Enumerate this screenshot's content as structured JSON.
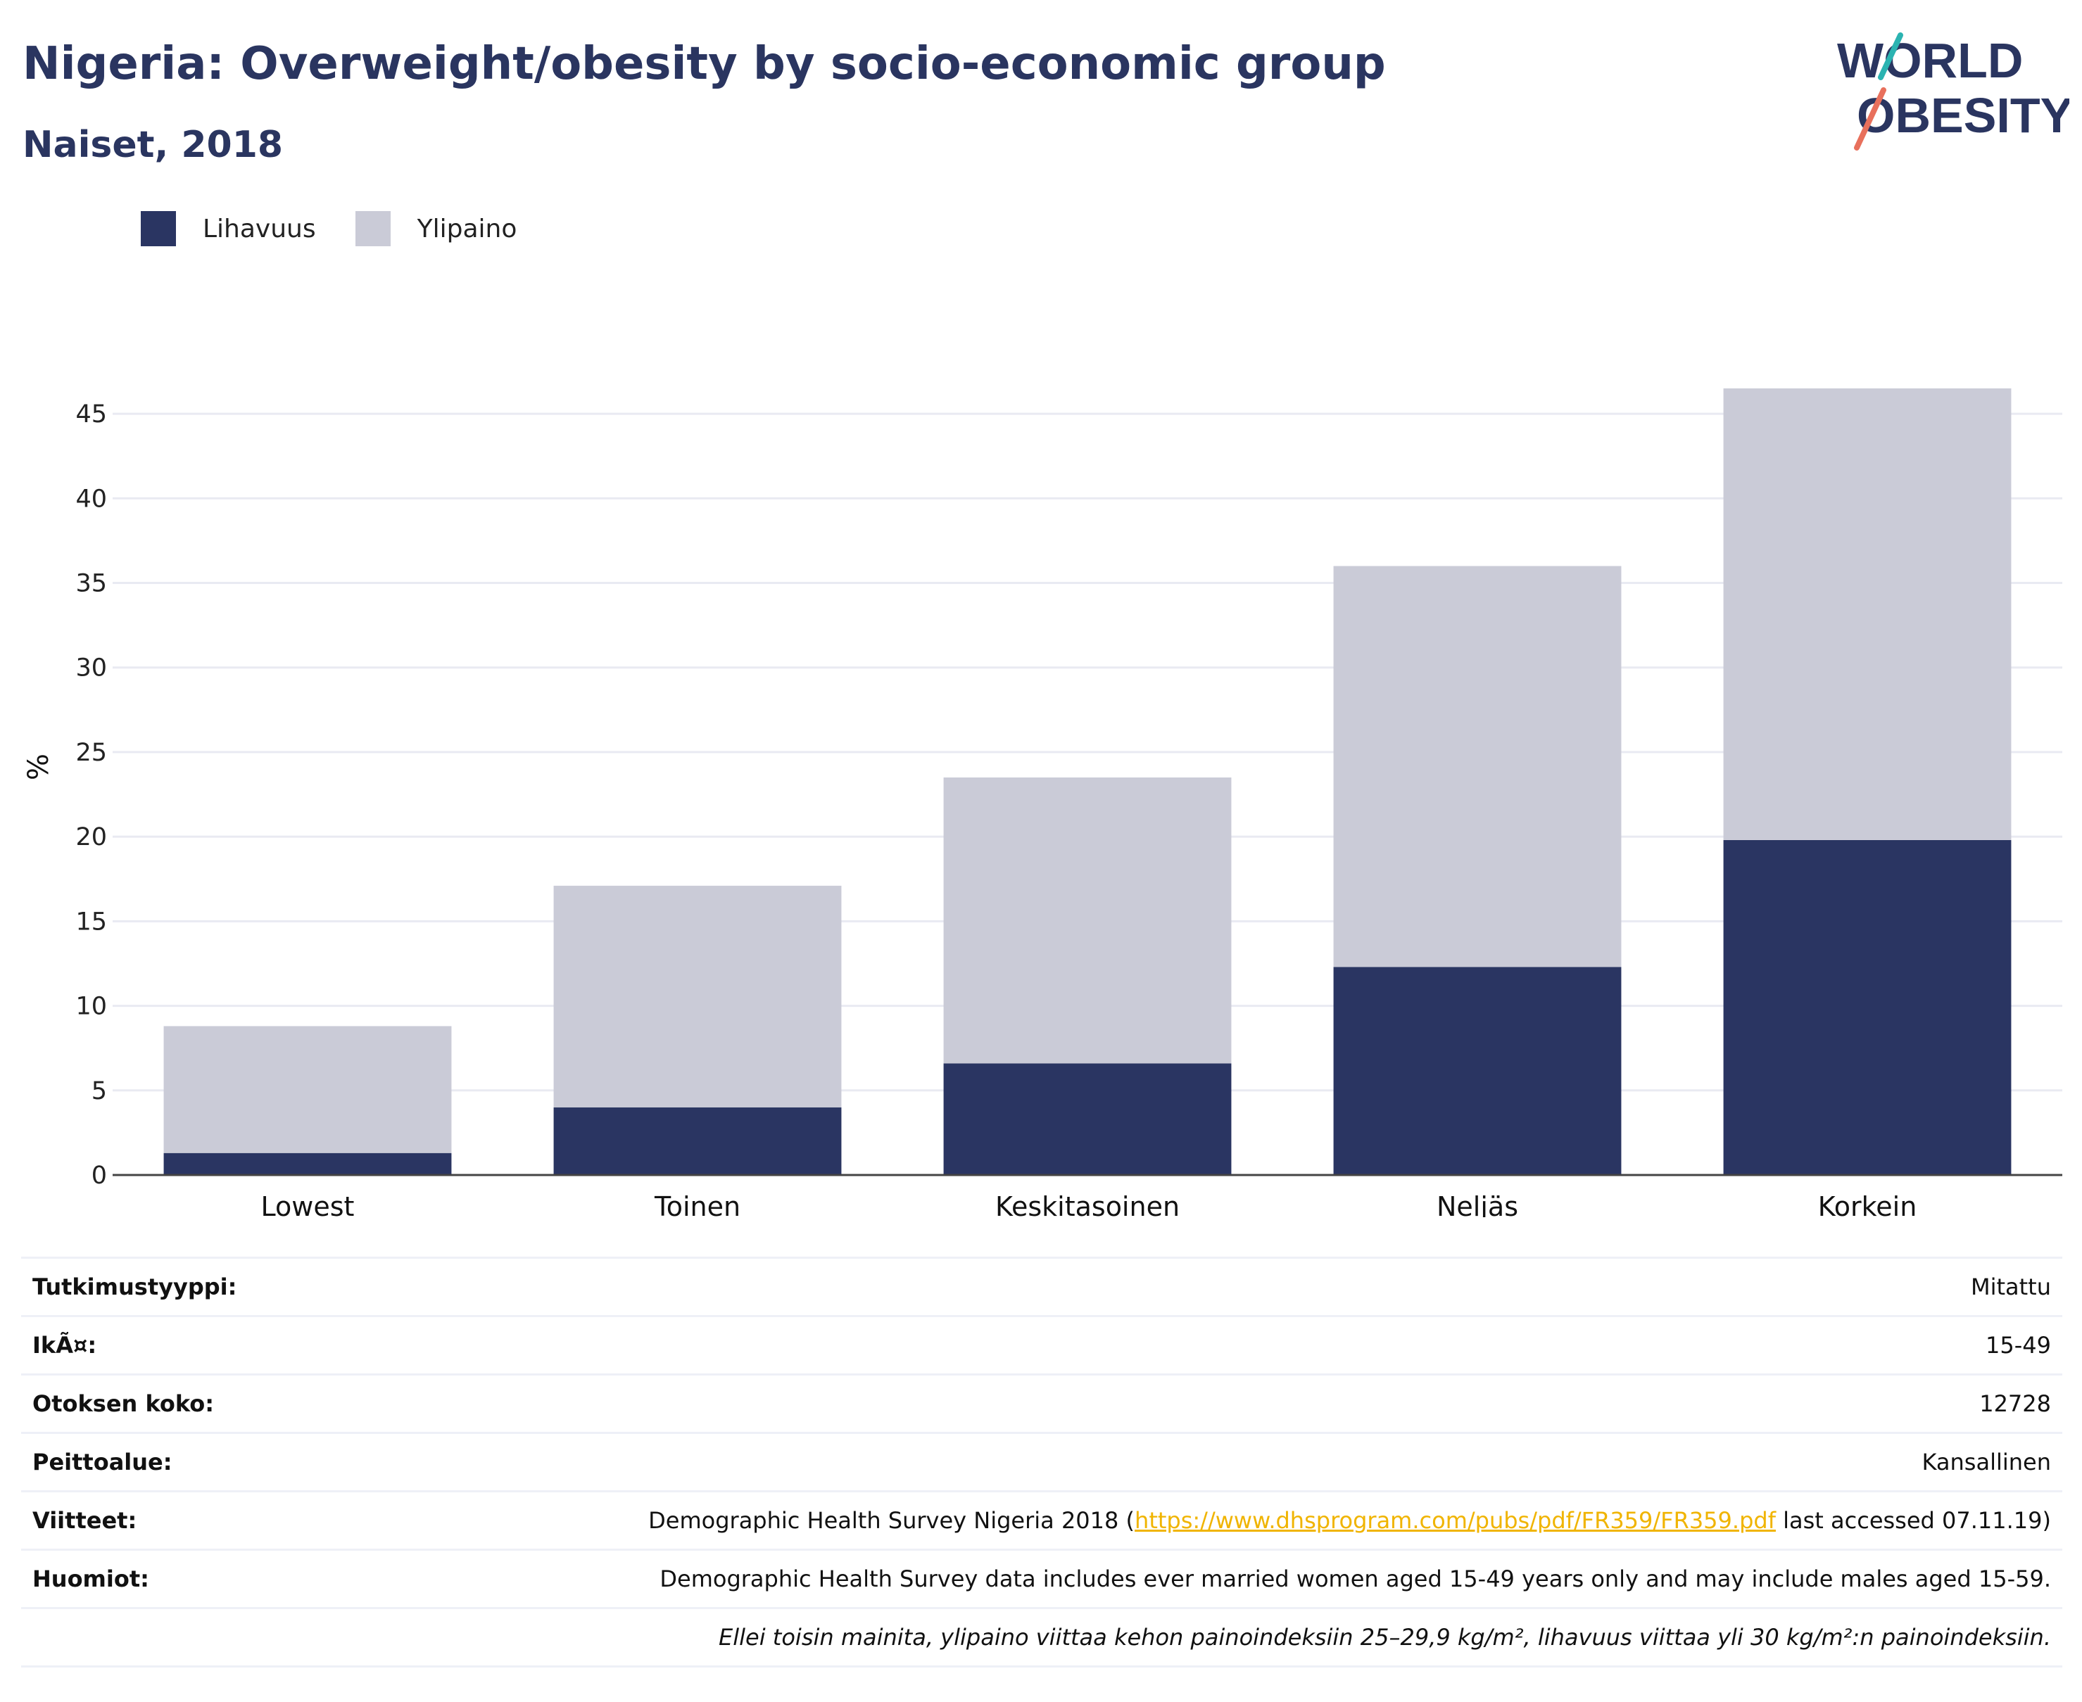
{
  "title": "Nigeria: Overweight/obesity by socio-economic group",
  "subtitle": "Naiset, 2018",
  "logo": {
    "line1": "WORLD",
    "line2": "OBESITY",
    "accent_teal": "#2bb3b1",
    "accent_red": "#e8705c"
  },
  "legend": [
    {
      "label": "Lihavuus",
      "color": "#2a3562"
    },
    {
      "label": "Ylipaino",
      "color": "#cacbd7"
    }
  ],
  "chart_data": {
    "type": "bar",
    "stacked": true,
    "categories": [
      "Lowest",
      "Toinen",
      "Keskitasoinen",
      "Neljäs",
      "Korkein"
    ],
    "series": [
      {
        "name": "Lihavuus",
        "color": "#2a3562",
        "values": [
          1.3,
          4.0,
          6.6,
          12.3,
          19.8
        ]
      },
      {
        "name": "Ylipaino",
        "color": "#cacbd7",
        "values": [
          7.5,
          13.1,
          16.9,
          23.7,
          26.7
        ]
      }
    ],
    "totals": [
      8.8,
      17.1,
      23.5,
      36.0,
      46.5
    ],
    "ylabel": "%",
    "xlabel": "",
    "ylim": [
      0,
      47
    ],
    "yticks": [
      0,
      5,
      10,
      15,
      20,
      25,
      30,
      35,
      40,
      45
    ],
    "grid": true,
    "legend_position": "top-left"
  },
  "info": {
    "study_type": {
      "label": "Tutkimustyyppi:",
      "value": "Mitattu"
    },
    "age": {
      "label": "IkÃ¤:",
      "value": "15-49"
    },
    "sample_size": {
      "label": "Otoksen koko:",
      "value": "12728"
    },
    "coverage": {
      "label": "Peittoalue:",
      "value": "Kansallinen"
    },
    "references": {
      "label": "Viitteet:",
      "prefix": "Demographic Health Survey Nigeria 2018 (",
      "link": "https://www.dhsprogram.com/pubs/pdf/FR359/FR359.pdf",
      "suffix": " last accessed 07.11.19)"
    },
    "notes": {
      "label": "Huomiot:",
      "value": "Demographic Health Survey data includes ever married women aged 15-49 years only and may include males aged 15-59."
    },
    "footnote": "Ellei toisin mainita, ylipaino viittaa kehon painoindeksiin 25–29,9 kg/m², lihavuus viittaa yli 30 kg/m²:n painoindeksiin."
  }
}
